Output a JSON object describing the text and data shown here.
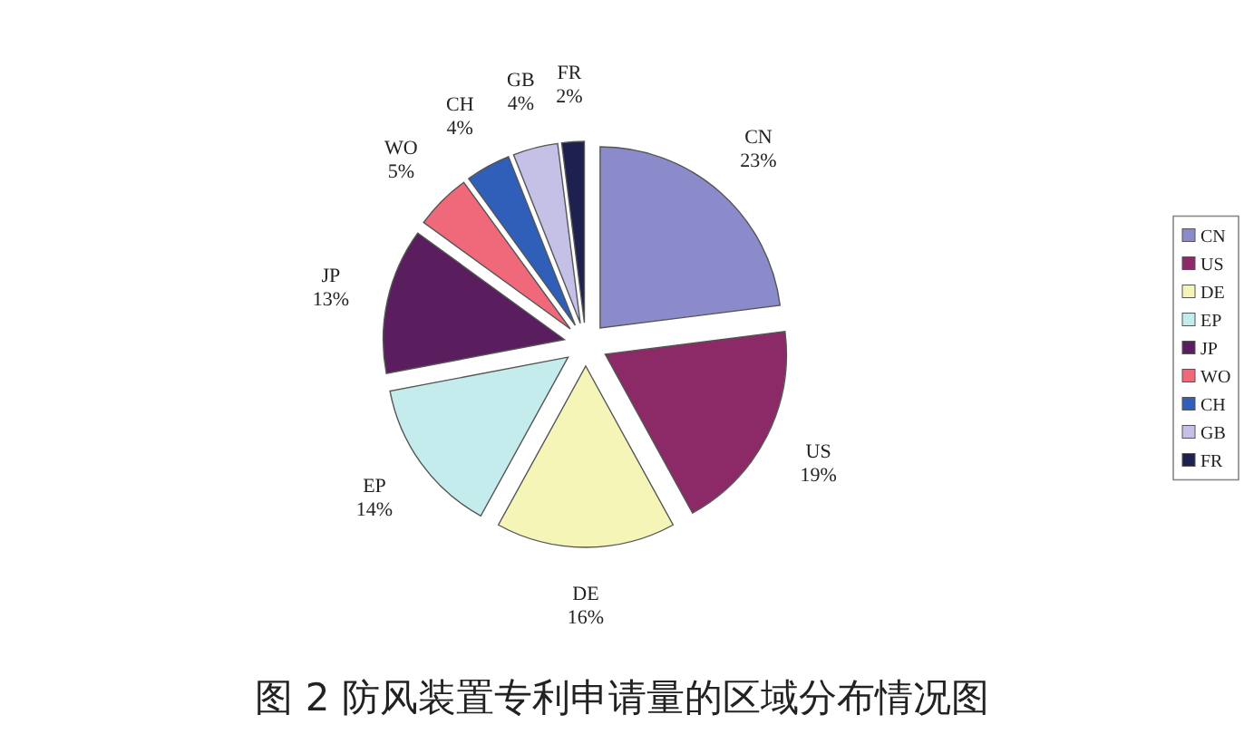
{
  "chart_data": {
    "type": "pie",
    "title": "图 2 防风装置专利申请量的区域分布情况图",
    "categories": [
      "CN",
      "US",
      "DE",
      "EP",
      "JP",
      "WO",
      "CH",
      "GB",
      "FR"
    ],
    "values": [
      23,
      19,
      16,
      14,
      13,
      5,
      4,
      4,
      2
    ],
    "colors": [
      "#8b8bcc",
      "#8b2a66",
      "#f5f5b8",
      "#c5ecec",
      "#5a1e5e",
      "#f0697a",
      "#2f5fb8",
      "#c5c0e6",
      "#1e2050"
    ],
    "value_labels": [
      "23%",
      "19%",
      "16%",
      "14%",
      "13%",
      "5%",
      "4%",
      "4%",
      "2%"
    ],
    "legend": "right"
  }
}
